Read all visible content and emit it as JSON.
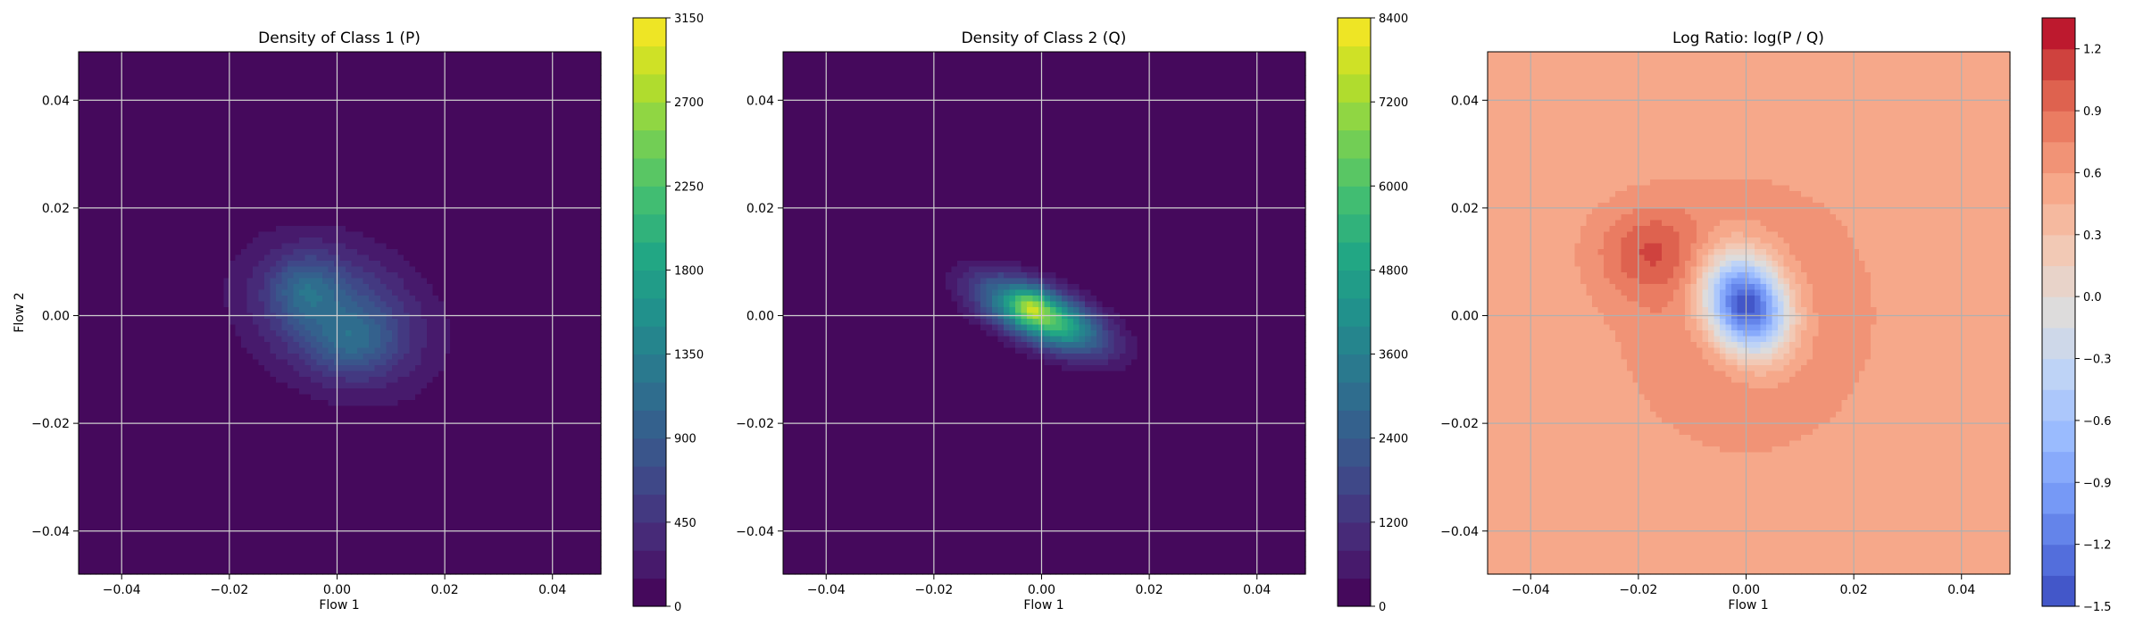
{
  "chart_data": [
    {
      "type": "heatmap",
      "title": "Density of Class 1 (P)",
      "xlabel": "Flow 1",
      "ylabel": "Flow 2",
      "xlim": [
        -0.048,
        0.049
      ],
      "ylim": [
        -0.048,
        0.049
      ],
      "xticks": [
        -0.04,
        -0.02,
        0.0,
        0.02,
        0.04
      ],
      "xticklabels": [
        "−0.04",
        "−0.02",
        "0.00",
        "0.02",
        "0.04"
      ],
      "yticks": [
        -0.04,
        -0.02,
        0.0,
        0.02,
        0.04
      ],
      "yticklabels": [
        "−0.04",
        "−0.02",
        "0.00",
        "0.02",
        "0.04"
      ],
      "grid": true,
      "colormap": "viridis",
      "density_blobs": [
        {
          "cx": 0.0,
          "cy": 0.0,
          "sx": 0.011,
          "sy": 0.009,
          "rho": -0.25,
          "peak": 900
        },
        {
          "cx": -0.006,
          "cy": 0.005,
          "sx": 0.004,
          "sy": 0.004,
          "rho": 0.0,
          "peak": 500
        },
        {
          "cx": 0.003,
          "cy": -0.005,
          "sx": 0.005,
          "sy": 0.004,
          "rho": 0.0,
          "peak": 400
        }
      ],
      "colorbar": {
        "min": 0,
        "max": 3150,
        "levels": 21,
        "ticks": [
          0,
          450,
          900,
          1350,
          1800,
          2250,
          2700,
          3150
        ],
        "ticklabels": [
          "0",
          "450",
          "900",
          "1350",
          "1800",
          "2250",
          "2700",
          "3150"
        ]
      }
    },
    {
      "type": "heatmap",
      "title": "Density of Class 2 (Q)",
      "xlabel": "Flow 1",
      "ylabel": "",
      "xlim": [
        -0.048,
        0.049
      ],
      "ylim": [
        -0.048,
        0.049
      ],
      "xticks": [
        -0.04,
        -0.02,
        0.0,
        0.02,
        0.04
      ],
      "xticklabels": [
        "−0.04",
        "−0.02",
        "0.00",
        "0.02",
        "0.04"
      ],
      "yticks": [
        -0.04,
        -0.02,
        0.0,
        0.02,
        0.04
      ],
      "yticklabels": [
        "−0.04",
        "−0.02",
        "0.00",
        "0.02",
        "0.04"
      ],
      "grid": true,
      "colormap": "viridis",
      "density_blobs": [
        {
          "cx": 0.0,
          "cy": 0.0,
          "sx": 0.0075,
          "sy": 0.0045,
          "rho": -0.6,
          "peak": 6500
        },
        {
          "cx": -0.002,
          "cy": 0.002,
          "sx": 0.002,
          "sy": 0.002,
          "rho": 0.0,
          "peak": 1600
        }
      ],
      "colorbar": {
        "min": 0,
        "max": 8400,
        "levels": 21,
        "ticks": [
          0,
          1200,
          2400,
          3600,
          4800,
          6000,
          7200,
          8400
        ],
        "ticklabels": [
          "0",
          "1200",
          "2400",
          "3600",
          "4800",
          "6000",
          "7200",
          "8400"
        ]
      }
    },
    {
      "type": "heatmap",
      "title": "Log Ratio: log(P / Q)",
      "xlabel": "Flow 1",
      "ylabel": "",
      "xlim": [
        -0.048,
        0.049
      ],
      "ylim": [
        -0.048,
        0.049
      ],
      "xticks": [
        -0.04,
        -0.02,
        0.0,
        0.02,
        0.04
      ],
      "xticklabels": [
        "−0.04",
        "−0.02",
        "0.00",
        "0.02",
        "0.04"
      ],
      "yticks": [
        -0.04,
        -0.02,
        0.0,
        0.02,
        0.04
      ],
      "yticklabels": [
        "−0.04",
        "−0.02",
        "0.00",
        "0.02",
        "0.04"
      ],
      "grid": true,
      "colormap": "coolwarm",
      "density_blobs": [
        {
          "cx": 0.0,
          "cy": 0.0,
          "sx": 0.015,
          "sy": 0.016,
          "rho": 0.0,
          "peak": 0.35
        },
        {
          "cx": -0.018,
          "cy": 0.012,
          "sx": 0.007,
          "sy": 0.006,
          "rho": 0.0,
          "peak": 0.45
        },
        {
          "cx": 0.0,
          "cy": 0.002,
          "sx": 0.0055,
          "sy": 0.0065,
          "rho": -0.2,
          "peak": -2.3
        }
      ],
      "base_value": 0.5,
      "colorbar": {
        "min": -1.5,
        "max": 1.35,
        "levels": 19,
        "ticks": [
          -1.5,
          -1.2,
          -0.9,
          -0.6,
          -0.3,
          0.0,
          0.3,
          0.6,
          0.9,
          1.2
        ],
        "ticklabels": [
          "−1.5",
          "−1.2",
          "−0.9",
          "−0.6",
          "−0.3",
          "0.0",
          "0.3",
          "0.6",
          "0.9",
          "1.2"
        ]
      }
    }
  ]
}
